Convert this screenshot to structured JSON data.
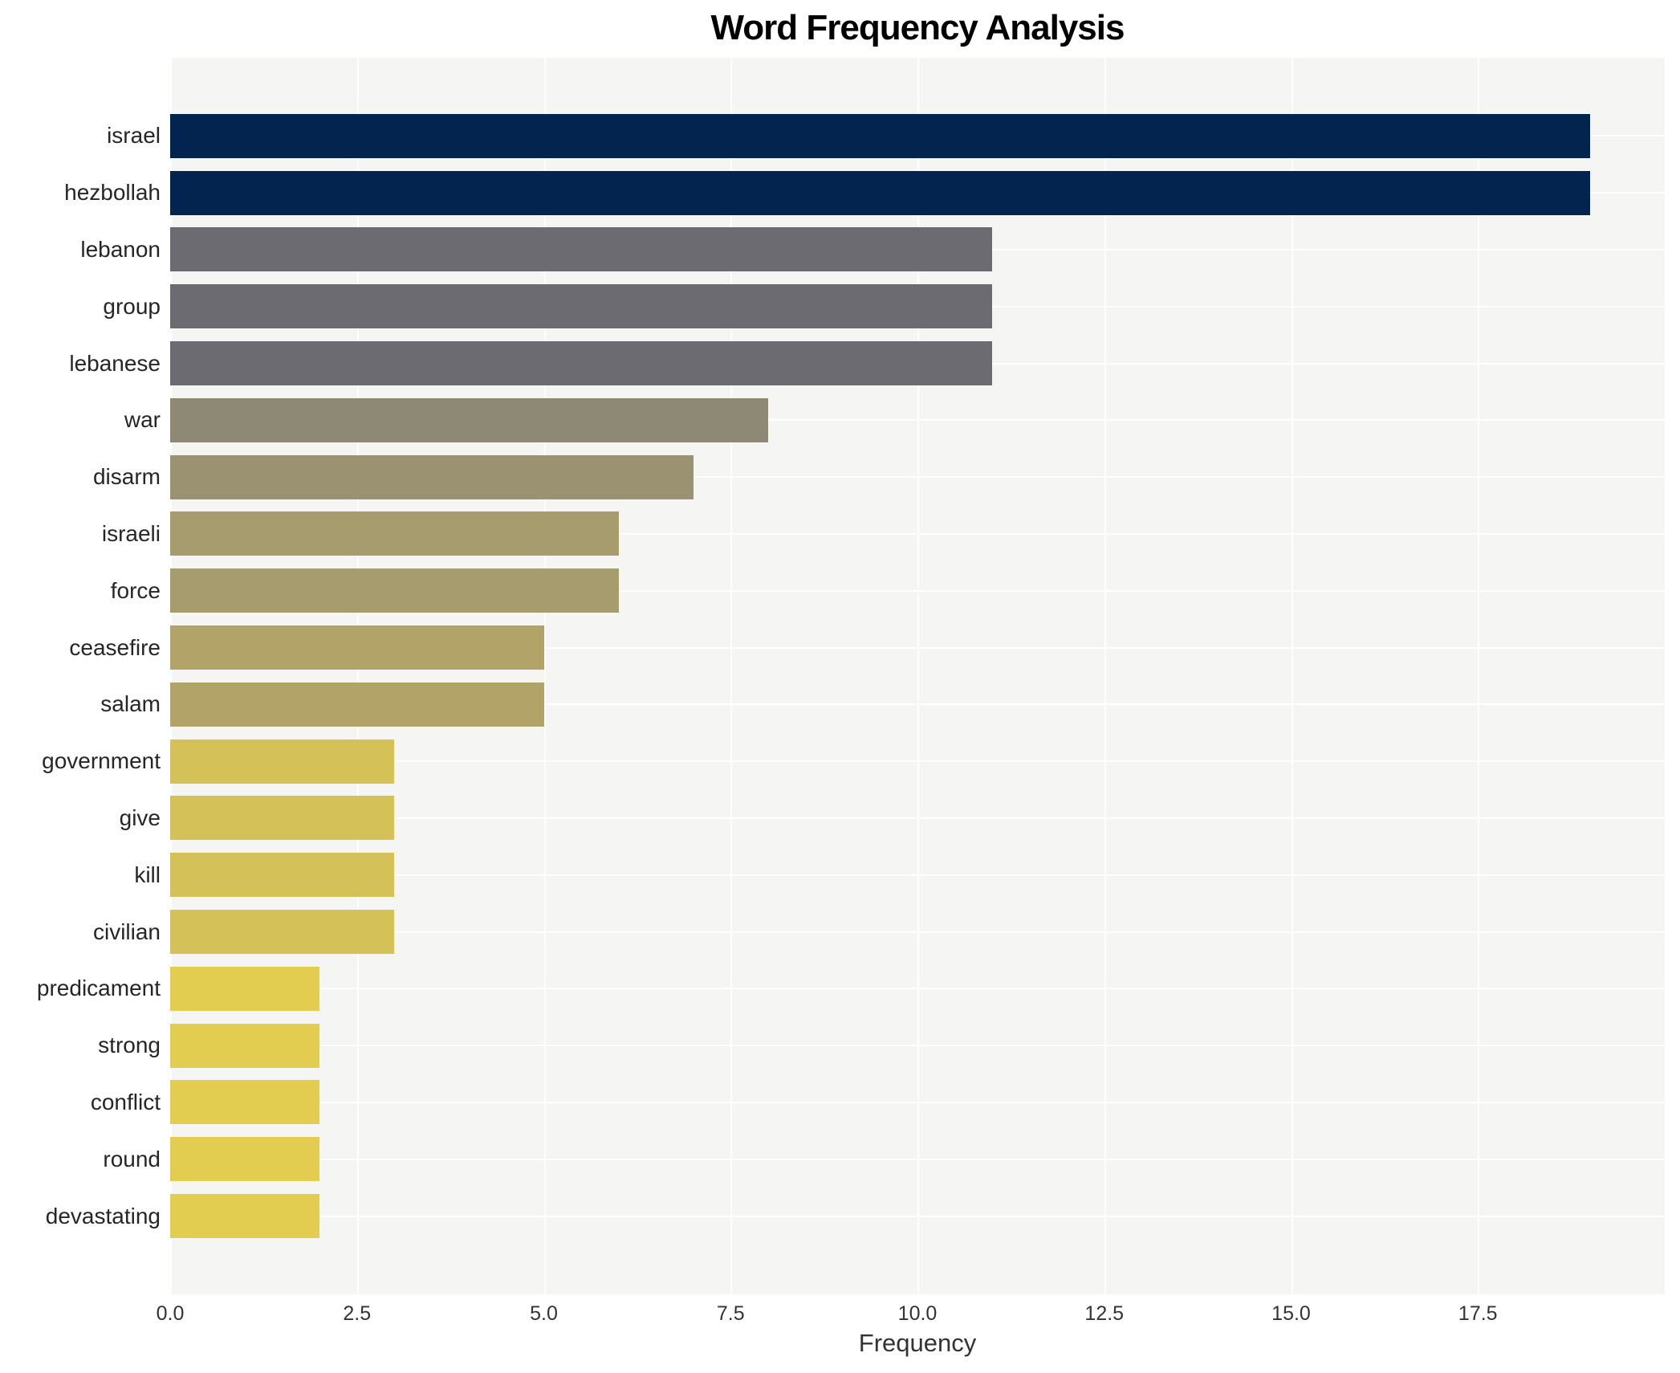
{
  "title": "Word Frequency Analysis",
  "chart_data": {
    "type": "bar",
    "orientation": "horizontal",
    "title": "Word Frequency Analysis",
    "xlabel": "Frequency",
    "ylabel": "",
    "categories": [
      "israel",
      "hezbollah",
      "lebanon",
      "group",
      "lebanese",
      "war",
      "disarm",
      "israeli",
      "force",
      "ceasefire",
      "salam",
      "government",
      "give",
      "kill",
      "civilian",
      "predicament",
      "strong",
      "conflict",
      "round",
      "devastating"
    ],
    "values": [
      19,
      19,
      11,
      11,
      11,
      8,
      7,
      6,
      6,
      5,
      5,
      3,
      3,
      3,
      3,
      2,
      2,
      2,
      2,
      2
    ],
    "bar_colors": [
      "#02244e",
      "#02244e",
      "#6b6b71",
      "#6b6b71",
      "#6b6b71",
      "#8e8975",
      "#9b9272",
      "#a69c6e",
      "#a69c6e",
      "#b2a468",
      "#b2a468",
      "#d4c157",
      "#d4c157",
      "#d4c157",
      "#d4c157",
      "#e2cd51",
      "#e2cd51",
      "#e2cd51",
      "#e2cd51",
      "#e2cd51"
    ],
    "xlim": [
      0,
      20
    ],
    "xticks": [
      0.0,
      2.5,
      5.0,
      7.5,
      10.0,
      12.5,
      15.0,
      17.5
    ],
    "xtick_labels": [
      "0.0",
      "2.5",
      "5.0",
      "7.5",
      "10.0",
      "12.5",
      "15.0",
      "17.5"
    ],
    "grid": true,
    "legend": false,
    "plot_bg_color": "#f5f5f4",
    "grid_color": "#ffffff"
  }
}
